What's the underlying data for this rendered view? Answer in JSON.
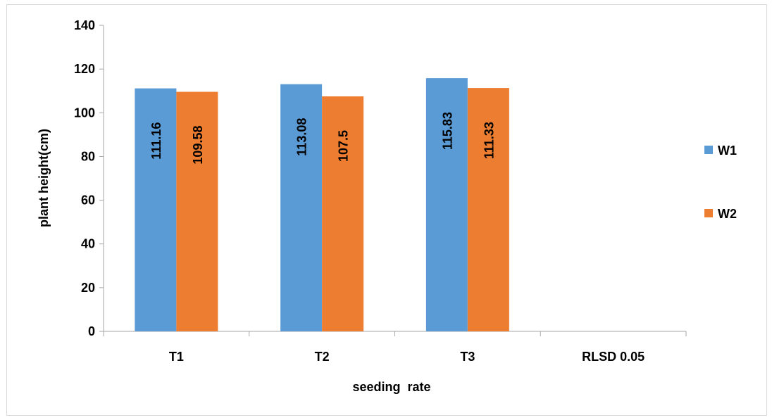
{
  "chart_data": {
    "type": "bar",
    "categories": [
      "T1",
      "T2",
      "T3",
      "RLSD 0.05"
    ],
    "series": [
      {
        "name": "W1",
        "values": [
          111.16,
          113.08,
          115.83,
          null
        ],
        "labels": [
          "111.16",
          "113.08",
          "115.83",
          ""
        ],
        "color": "#5b9bd5"
      },
      {
        "name": "W2",
        "values": [
          109.58,
          107.5,
          111.33,
          null
        ],
        "labels": [
          "109.58",
          "107.5",
          "111.33",
          ""
        ],
        "color": "#ed7d31"
      }
    ],
    "title": "",
    "xlabel": "seeding  rate",
    "ylabel": "plant height(cm)",
    "ylim": [
      0,
      140
    ],
    "yticks": [
      0,
      20,
      40,
      60,
      80,
      100,
      120,
      140
    ],
    "grid": false,
    "legend_position": "right"
  }
}
